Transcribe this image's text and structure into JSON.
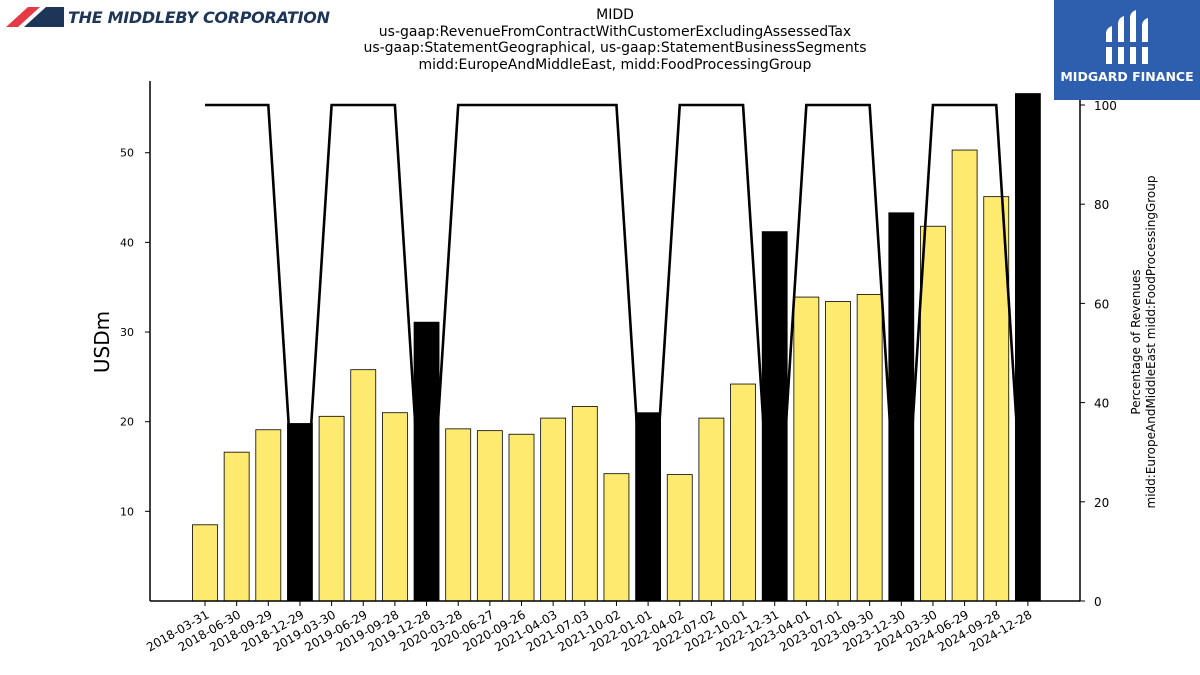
{
  "header": {
    "title_lines": [
      "MIDD",
      "us-gaap:RevenueFromContractWithCustomerExcludingAssessedTax",
      "us-gaap:StatementGeographical, us-gaap:StatementBusinessSegments",
      "midd:EuropeAndMiddleEast, midd:FoodProcessingGroup"
    ],
    "left_logo_text": "THE MIDDLEBY CORPORATION",
    "right_logo_text": "MIDGARD FINANCE"
  },
  "colors": {
    "bar_fill": "#ffea70",
    "bar_highlight": "#000000",
    "line": "#000000",
    "logo_left_red": "#e63946",
    "logo_left_navy": "#1d3557",
    "logo_right_bg": "#2d5fae"
  },
  "chart_data": {
    "type": "bar",
    "ylabel": "USDm",
    "y2label_lines": [
      "Percentage of Revenues",
      "midd:EuropeAndMiddleEast midd:FoodProcessingGroup"
    ],
    "ylim": [
      0,
      58
    ],
    "y_ticks": [
      10,
      20,
      30,
      40,
      50
    ],
    "y2lim": [
      0,
      100
    ],
    "y2_ticks": [
      0,
      20,
      40,
      60,
      80,
      100
    ],
    "categories": [
      "2018-03-31",
      "2018-06-30",
      "2018-09-29",
      "2018-12-29",
      "2019-03-30",
      "2019-06-29",
      "2019-09-28",
      "2019-12-28",
      "2020-03-28",
      "2020-06-27",
      "2020-09-26",
      "2021-04-03",
      "2021-07-03",
      "2021-10-02",
      "2022-01-01",
      "2022-04-02",
      "2022-07-02",
      "2022-10-01",
      "2022-12-31",
      "2023-04-01",
      "2023-07-01",
      "2023-09-30",
      "2023-12-30",
      "2024-03-30",
      "2024-06-29",
      "2024-09-28",
      "2024-12-28"
    ],
    "series": [
      {
        "values": [
          8.5,
          16.6,
          19.1,
          19.8,
          20.6,
          25.8,
          21.0,
          31.1,
          19.2,
          19.0,
          18.6,
          20.4,
          21.7,
          14.2,
          21.0,
          14.1,
          20.4,
          24.2,
          41.2,
          33.9,
          33.4,
          34.2,
          43.3,
          41.8,
          50.3,
          45.1,
          56.6
        ]
      },
      {
        "values": [
          100,
          100,
          100,
          0,
          100,
          100,
          100,
          0,
          100,
          100,
          100,
          100,
          100,
          100,
          0,
          100,
          100,
          100,
          0,
          100,
          100,
          100,
          0,
          100,
          100,
          100,
          0
        ]
      }
    ],
    "highlighted": [
      false,
      false,
      false,
      true,
      false,
      false,
      false,
      true,
      false,
      false,
      false,
      false,
      false,
      false,
      true,
      false,
      false,
      false,
      true,
      false,
      false,
      false,
      true,
      false,
      false,
      false,
      true
    ]
  }
}
